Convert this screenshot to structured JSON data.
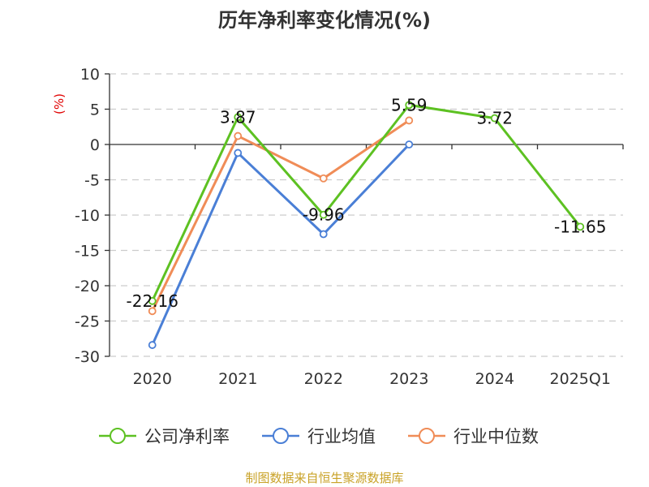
{
  "chart_data": {
    "type": "line",
    "title": "历年净利率变化情况(%)",
    "ylabel": "(%)",
    "categories": [
      "2020",
      "2021",
      "2022",
      "2023",
      "2024",
      "2025Q1"
    ],
    "ylim": [
      -30,
      10
    ],
    "yticks": [
      10,
      5,
      0,
      -5,
      -10,
      -15,
      -20,
      -25,
      -30
    ],
    "grid": true,
    "legend_position": "bottom",
    "series": [
      {
        "name": "公司净利率",
        "color": "#5dc122",
        "values": [
          -22.16,
          3.87,
          -9.96,
          5.59,
          3.72,
          -11.65
        ],
        "labels": [
          "-22.16",
          "3.87",
          "-9.96",
          "5.59",
          "3.72",
          "-11.65"
        ]
      },
      {
        "name": "行业均值",
        "color": "#4a7fd6",
        "values": [
          -28.4,
          -1.2,
          -12.7,
          0.0,
          null,
          null
        ]
      },
      {
        "name": "行业中位数",
        "color": "#f08c57",
        "values": [
          -23.6,
          1.2,
          -4.8,
          3.4,
          null,
          null
        ]
      }
    ]
  },
  "footer": "制图数据来自恒生聚源数据库"
}
